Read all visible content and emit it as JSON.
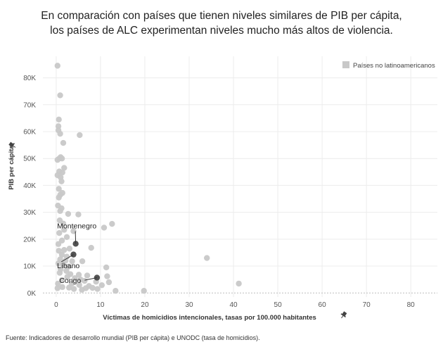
{
  "chart_data": {
    "type": "scatter",
    "title_lines": [
      "En comparación con países que tienen niveles similares de PIB per cápita,",
      "los países de ALC experimentan niveles mucho más altos de violencia."
    ],
    "xlabel": "Víctimas de homicidios intencionales, tasas por 100.000 habitantes",
    "ylabel": "PIB per cápita",
    "xlim": [
      -3,
      86
    ],
    "ylim": [
      -1500,
      88000
    ],
    "x_ticks": [
      0,
      10,
      20,
      30,
      40,
      50,
      60,
      70,
      80
    ],
    "x_tick_labels": [
      "0",
      "10",
      "20",
      "30",
      "40",
      "50",
      "60",
      "70",
      "80"
    ],
    "y_ticks": [
      0,
      10000,
      20000,
      30000,
      40000,
      50000,
      60000,
      70000,
      80000
    ],
    "y_tick_labels": [
      "0K",
      "10K",
      "20K",
      "30K",
      "40K",
      "50K",
      "60K",
      "70K",
      "80K"
    ],
    "grid": true,
    "legend_position": "top-right",
    "legend": [
      {
        "label": "Países no latinoamericanos",
        "color": "#c8c8c8"
      }
    ],
    "series": [
      {
        "name": "Países no latinoamericanos",
        "color": "#c8c8c8",
        "points": [
          [
            0.3,
            84500
          ],
          [
            0.9,
            73500
          ],
          [
            0.6,
            64500
          ],
          [
            0.5,
            62000
          ],
          [
            0.5,
            60500
          ],
          [
            0.9,
            59200
          ],
          [
            5.3,
            58700
          ],
          [
            1.6,
            55800
          ],
          [
            0.7,
            50000
          ],
          [
            1.0,
            50500
          ],
          [
            1.3,
            50000
          ],
          [
            0.3,
            49500
          ],
          [
            1.8,
            46500
          ],
          [
            0.7,
            45200
          ],
          [
            1.4,
            44800
          ],
          [
            0.3,
            43800
          ],
          [
            1.0,
            43000
          ],
          [
            1.2,
            41500
          ],
          [
            0.6,
            38700
          ],
          [
            1.4,
            37200
          ],
          [
            0.9,
            36500
          ],
          [
            0.6,
            35500
          ],
          [
            0.4,
            32500
          ],
          [
            1.2,
            31500
          ],
          [
            0.9,
            30500
          ],
          [
            2.7,
            29400
          ],
          [
            5.0,
            29200
          ],
          [
            0.8,
            27000
          ],
          [
            1.6,
            25800
          ],
          [
            10.8,
            24300
          ],
          [
            12.6,
            25700
          ],
          [
            1.8,
            23500
          ],
          [
            3.9,
            23000
          ],
          [
            0.7,
            22300
          ],
          [
            2.4,
            20800
          ],
          [
            1.3,
            19500
          ],
          [
            0.5,
            18200
          ],
          [
            7.9,
            16800
          ],
          [
            0.6,
            15700
          ],
          [
            1.8,
            16000
          ],
          [
            3.0,
            16500
          ],
          [
            1.3,
            14200
          ],
          [
            2.4,
            13500
          ],
          [
            0.9,
            12500
          ],
          [
            2.1,
            12000
          ],
          [
            3.6,
            11800
          ],
          [
            5.9,
            11800
          ],
          [
            0.5,
            11000
          ],
          [
            1.6,
            10500
          ],
          [
            2.8,
            9800
          ],
          [
            34.0,
            13000
          ],
          [
            11.3,
            9500
          ],
          [
            1.0,
            8800
          ],
          [
            2.3,
            8200
          ],
          [
            0.8,
            7500
          ],
          [
            3.2,
            7000
          ],
          [
            5.1,
            6800
          ],
          [
            7.0,
            6500
          ],
          [
            11.5,
            6200
          ],
          [
            2.5,
            6000
          ],
          [
            4.2,
            5500
          ],
          [
            5.5,
            5000
          ],
          [
            1.3,
            4800
          ],
          [
            6.4,
            4500
          ],
          [
            9.0,
            4200
          ],
          [
            11.9,
            4000
          ],
          [
            0.4,
            3500
          ],
          [
            3.5,
            3500
          ],
          [
            5.2,
            3000
          ],
          [
            7.4,
            2600
          ],
          [
            10.3,
            2900
          ],
          [
            41.2,
            3500
          ],
          [
            1.4,
            2200
          ],
          [
            2.9,
            2000
          ],
          [
            6.7,
            1800
          ],
          [
            8.2,
            1900
          ],
          [
            0.3,
            1800
          ],
          [
            4.0,
            1500
          ],
          [
            5.8,
            1200
          ],
          [
            9.3,
            1500
          ],
          [
            13.4,
            800
          ],
          [
            19.8,
            800
          ]
        ]
      },
      {
        "name": "highlighted",
        "color": "#4a4a4a",
        "points": [
          [
            4.4,
            18300
          ],
          [
            3.9,
            14300
          ],
          [
            9.2,
            5700
          ]
        ]
      }
    ],
    "annotations": [
      {
        "label": "Montenegro",
        "point": [
          4.4,
          18300
        ],
        "label_at": [
          0.2,
          24000
        ]
      },
      {
        "label": "Líbano",
        "point": [
          3.9,
          14300
        ],
        "label_at": [
          0.2,
          9200
        ]
      },
      {
        "label": "Congo",
        "point": [
          9.2,
          5700
        ],
        "label_at": [
          0.7,
          3700
        ]
      }
    ]
  },
  "source": "Fuente: Indicadores de desarrollo mundial (PIB per cápita) e UNODC (tasa de homicidios)."
}
